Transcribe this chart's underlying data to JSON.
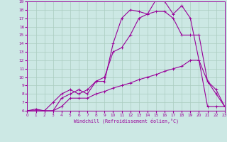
{
  "bg_color": "#cce8e4",
  "grid_color": "#aaccc0",
  "line_color": "#990099",
  "xlim": [
    0,
    23
  ],
  "ylim": [
    6,
    19
  ],
  "xlabel": "Windchill (Refroidissement éolien,°C)",
  "xticks": [
    0,
    1,
    2,
    3,
    4,
    5,
    6,
    7,
    8,
    9,
    10,
    11,
    12,
    13,
    14,
    15,
    16,
    17,
    18,
    19,
    20,
    21,
    22,
    23
  ],
  "yticks": [
    6,
    7,
    8,
    9,
    10,
    11,
    12,
    13,
    14,
    15,
    16,
    17,
    18,
    19
  ],
  "line1_x": [
    0,
    1,
    2,
    3,
    4,
    5,
    6,
    7,
    8,
    9,
    10,
    11,
    12,
    13,
    14,
    15,
    16,
    17,
    18,
    19,
    20,
    21,
    22,
    23
  ],
  "line1_y": [
    6,
    6,
    6,
    6,
    6,
    6,
    6,
    6,
    6,
    6,
    6,
    6,
    6,
    6,
    6,
    6,
    6,
    6,
    6,
    6,
    6,
    6,
    6,
    6
  ],
  "line2_x": [
    0,
    1,
    2,
    3,
    4,
    5,
    6,
    7,
    8,
    9,
    10,
    11,
    12,
    13,
    14,
    15,
    16,
    17,
    18,
    19,
    20,
    21,
    22,
    23
  ],
  "line2_y": [
    6,
    6,
    6,
    6,
    6.5,
    7.5,
    7.5,
    7.5,
    8,
    8.3,
    8.7,
    9.0,
    9.3,
    9.7,
    10,
    10.3,
    10.7,
    11,
    11.3,
    12,
    12,
    6.5,
    6.5,
    6.5
  ],
  "line3_x": [
    0,
    1,
    2,
    3,
    4,
    5,
    6,
    7,
    8,
    9,
    10,
    11,
    12,
    13,
    14,
    15,
    16,
    17,
    18,
    19,
    20,
    21,
    22,
    23
  ],
  "line3_y": [
    6,
    6,
    6,
    7,
    8,
    8.5,
    8,
    8.5,
    9.5,
    10,
    13,
    13.5,
    15,
    17,
    17.5,
    17.8,
    17.8,
    17,
    15,
    15,
    15,
    9.5,
    8.5,
    6.5
  ],
  "line4_x": [
    0,
    1,
    2,
    3,
    4,
    5,
    6,
    7,
    8,
    9,
    10,
    11,
    12,
    13,
    14,
    15,
    16,
    17,
    18,
    19,
    20,
    21,
    22,
    23
  ],
  "line4_y": [
    6,
    6.2,
    6,
    6,
    7.5,
    8,
    8.5,
    8,
    9.5,
    9.5,
    14,
    17,
    18,
    17.8,
    17.5,
    19.2,
    19,
    17.5,
    18.5,
    17,
    12,
    9.5,
    8,
    6.5
  ]
}
